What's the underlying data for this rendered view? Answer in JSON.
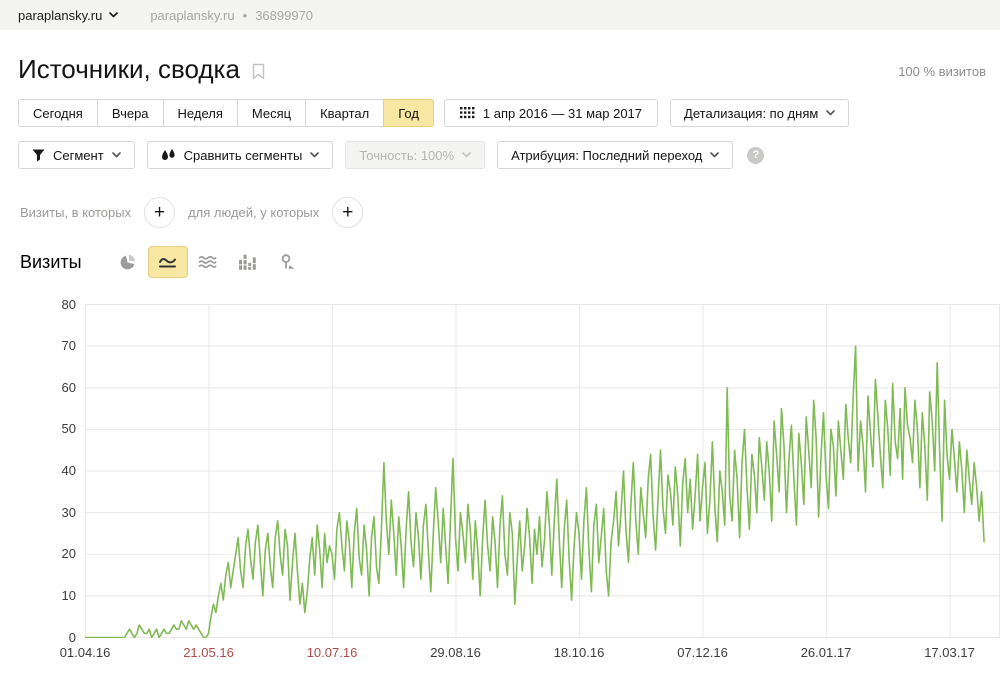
{
  "header": {
    "site": "paraplansky.ru",
    "site_secondary": "paraplansky.ru",
    "separator": "•",
    "counter_id": "36899970"
  },
  "page": {
    "title": "Источники, сводка",
    "visits_share": "100 % визитов"
  },
  "period_tabs": {
    "items": [
      "Сегодня",
      "Вчера",
      "Неделя",
      "Месяц",
      "Квартал",
      "Год"
    ],
    "selected": "Год"
  },
  "date_range": {
    "label": "1 апр 2016 — 31 мар 2017"
  },
  "detalization": {
    "label": "Детализация: по дням"
  },
  "toolbar": {
    "segment": "Сегмент",
    "compare": "Сравнить сегменты",
    "accuracy": "Точность: 100%",
    "attribution": "Атрибуция: Последний переход",
    "help_glyph": "?"
  },
  "filters": {
    "visits_label": "Визиты, в которых",
    "people_label": "для людей, у которых",
    "add_glyph": "+"
  },
  "metric": {
    "title": "Визиты"
  },
  "colors": {
    "line_green": "#80ba55",
    "selected_yellow": "#f8e7a2",
    "tick_red": "#b24a4a",
    "gridline": "#e8e8e8"
  },
  "chart_data": {
    "type": "line",
    "title": "Визиты",
    "ylabel": "",
    "xlabel": "",
    "ylim": [
      0,
      80
    ],
    "grid": true,
    "x_start": "01.04.2016",
    "x_end": "31.03.2017",
    "yticks": [
      0,
      10,
      20,
      30,
      40,
      50,
      60,
      70,
      80
    ],
    "xticks": [
      {
        "label": "01.04.16",
        "day": 0,
        "red": false
      },
      {
        "label": "21.05.16",
        "day": 50,
        "red": true
      },
      {
        "label": "10.07.16",
        "day": 100,
        "red": true
      },
      {
        "label": "29.08.16",
        "day": 150,
        "red": false
      },
      {
        "label": "18.10.16",
        "day": 200,
        "red": false
      },
      {
        "label": "07.12.16",
        "day": 250,
        "red": false
      },
      {
        "label": "26.01.17",
        "day": 300,
        "red": false
      },
      {
        "label": "17.03.17",
        "day": 350,
        "red": false
      }
    ],
    "values": [
      0,
      0,
      0,
      0,
      0,
      0,
      0,
      0,
      0,
      0,
      0,
      0,
      0,
      0,
      0,
      0,
      0,
      1,
      2,
      1,
      0,
      1,
      3,
      2,
      1,
      1,
      2,
      0,
      1,
      2,
      0,
      1,
      2,
      1,
      1,
      2,
      3,
      2,
      2,
      4,
      3,
      2,
      4,
      3,
      2,
      3,
      2,
      1,
      0,
      0,
      1,
      5,
      8,
      6,
      10,
      13,
      9,
      15,
      18,
      12,
      16,
      20,
      24,
      16,
      12,
      22,
      26,
      19,
      14,
      23,
      27,
      18,
      10,
      21,
      25,
      17,
      12,
      24,
      28,
      20,
      15,
      26,
      22,
      9,
      18,
      25,
      16,
      8,
      13,
      6,
      11,
      19,
      24,
      15,
      27,
      21,
      12,
      25,
      18,
      22,
      20,
      14,
      26,
      30,
      22,
      16,
      28,
      23,
      12,
      25,
      31,
      19,
      15,
      27,
      21,
      10,
      24,
      29,
      17,
      13,
      26,
      42,
      28,
      20,
      33,
      25,
      15,
      29,
      22,
      12,
      26,
      35,
      23,
      17,
      30,
      24,
      14,
      27,
      32,
      21,
      11,
      25,
      36,
      28,
      18,
      31,
      22,
      13,
      29,
      43,
      24,
      16,
      30,
      25,
      18,
      32,
      26,
      14,
      28,
      21,
      10,
      24,
      33,
      22,
      16,
      29,
      23,
      12,
      27,
      34,
      20,
      15,
      30,
      25,
      8,
      19,
      28,
      16,
      22,
      31,
      24,
      13,
      26,
      20,
      29,
      17,
      23,
      35,
      27,
      15,
      28,
      38,
      24,
      12,
      26,
      33,
      19,
      9,
      22,
      30,
      25,
      14,
      28,
      36,
      21,
      11,
      27,
      32,
      18,
      24,
      31,
      16,
      10,
      23,
      28,
      35,
      22,
      30,
      40,
      26,
      18,
      32,
      42,
      28,
      20,
      36,
      30,
      24,
      38,
      44,
      29,
      21,
      33,
      45,
      31,
      25,
      39,
      35,
      27,
      41,
      34,
      22,
      37,
      43,
      30,
      38,
      26,
      34,
      44,
      28,
      36,
      42,
      25,
      33,
      47,
      31,
      23,
      40,
      35,
      27,
      60,
      34,
      28,
      45,
      38,
      24,
      42,
      50,
      36,
      26,
      44,
      39,
      30,
      48,
      41,
      33,
      47,
      40,
      28,
      52,
      44,
      35,
      55,
      46,
      30,
      43,
      51,
      38,
      27,
      49,
      42,
      32,
      53,
      45,
      36,
      57,
      48,
      29,
      44,
      54,
      39,
      31,
      50,
      46,
      34,
      52,
      45,
      38,
      56,
      48,
      42,
      58,
      70,
      40,
      52,
      46,
      35,
      58,
      49,
      41,
      62,
      53,
      44,
      36,
      57,
      50,
      39,
      61,
      47,
      43,
      55,
      38,
      60,
      51,
      48,
      42,
      57,
      50,
      36,
      54,
      46,
      33,
      59,
      52,
      40,
      66,
      45,
      28,
      57,
      44,
      38,
      50,
      43,
      35,
      47,
      40,
      30,
      45,
      38,
      32,
      42,
      36,
      28,
      35,
      23
    ]
  }
}
